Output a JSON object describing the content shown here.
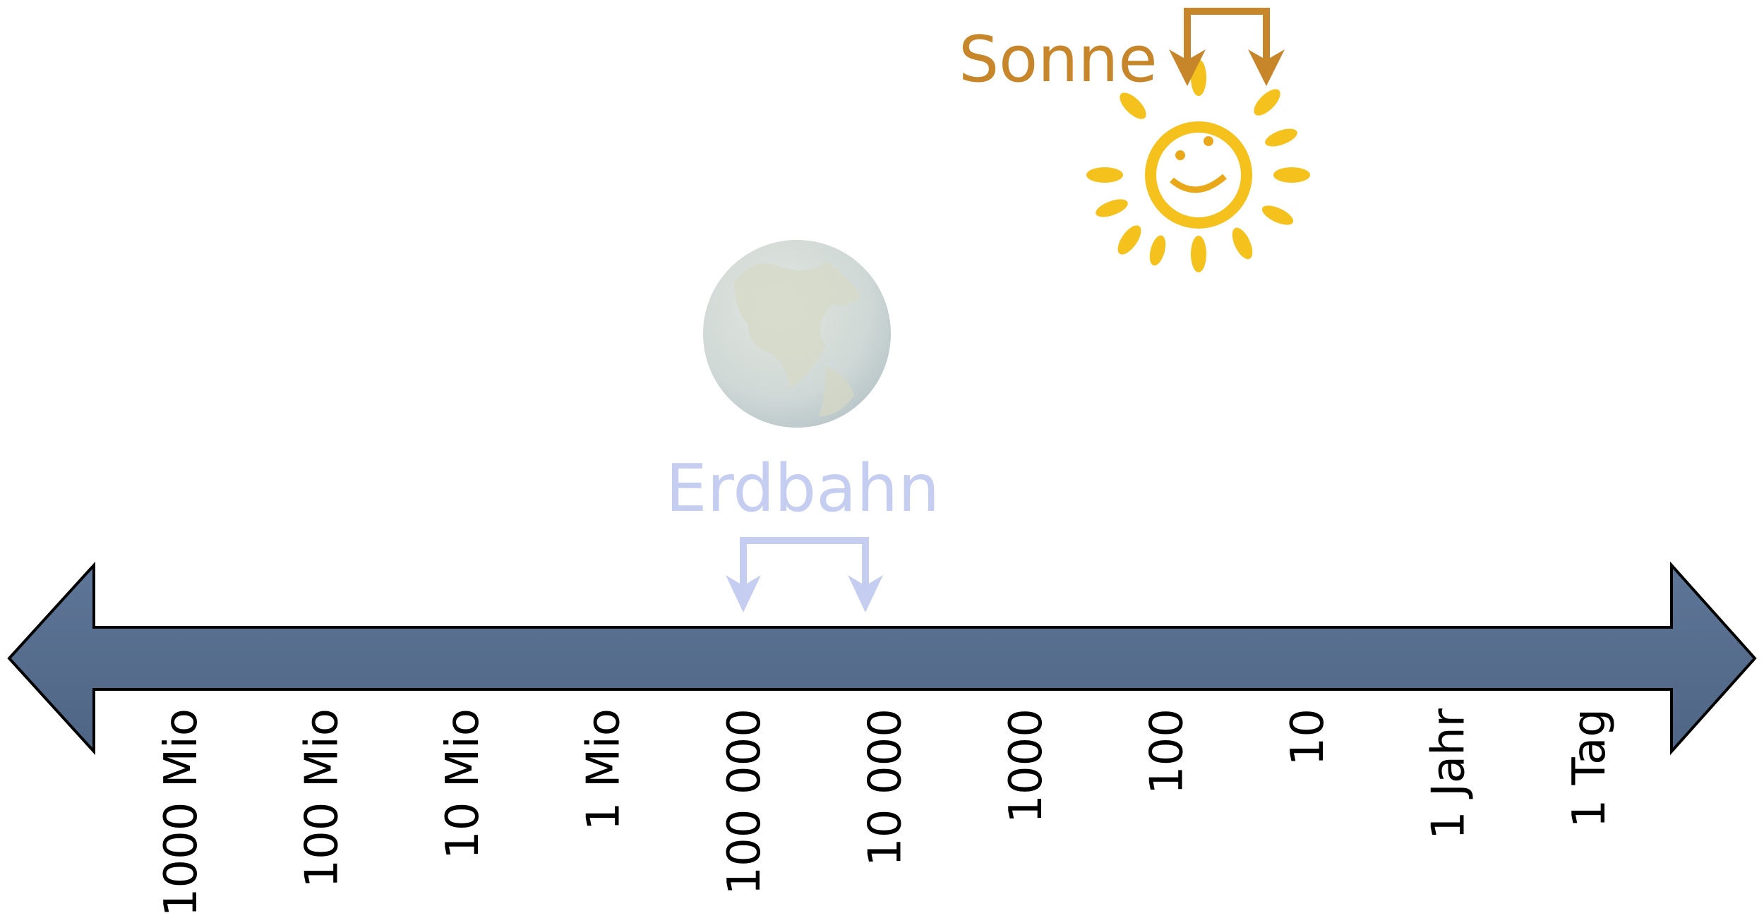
{
  "sun_label": "Sonne",
  "earth_label": "Erdbahn",
  "axis": {
    "ticks": [
      "1000 Mio",
      "100 Mio",
      "10 Mio",
      "1 Mio",
      "100 000",
      "10 000",
      "1000",
      "100",
      "10",
      "1 Jahr",
      "1 Tag"
    ]
  }
}
